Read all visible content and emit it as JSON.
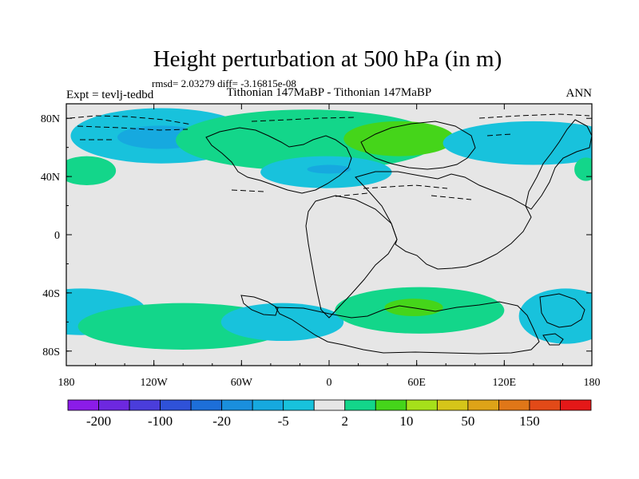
{
  "chart_data": {
    "type": "heatmap",
    "title": "Height perturbation at 500 hPa (in m)",
    "stats_text": "rmsd= 2.03279 diff= -3.16815e-08",
    "left_label": "Expt = tevlj-tedbd",
    "center_label": "Tithonian 147MaBP - Tithonian 147MaBP",
    "right_label": "ANN",
    "x_ticks": [
      "180",
      "120W",
      "60W",
      "0",
      "60E",
      "120E",
      "180"
    ],
    "x_tick_values": [
      -180,
      -120,
      -60,
      0,
      60,
      120,
      180
    ],
    "y_ticks": [
      "80N",
      "40N",
      "0",
      "40S",
      "80S"
    ],
    "y_tick_values": [
      80,
      40,
      0,
      -40,
      -80
    ],
    "xlim": [
      -180,
      180
    ],
    "ylim": [
      -90,
      90
    ],
    "colorbar": {
      "colors": [
        "#8b1ce8",
        "#6d28e0",
        "#4a3ddb",
        "#2f52d8",
        "#1d6fd9",
        "#1a8fdd",
        "#16a9df",
        "#18c2dc",
        "#e6e6e6",
        "#13d68a",
        "#45d51a",
        "#a6e01a",
        "#d6c519",
        "#dea318",
        "#e07718",
        "#e24a18",
        "#e41818"
      ],
      "labels": [
        "-200",
        "-100",
        "-20",
        "-5",
        "2",
        "10",
        "50",
        "150"
      ]
    },
    "regions": [
      {
        "level": "-5 to -2",
        "color": "#18c2dc",
        "cx": -115,
        "cy": 68,
        "rx": 62,
        "ry": 19
      },
      {
        "level": "-20 to -5",
        "color": "#16a9df",
        "cx": -115,
        "cy": 67,
        "rx": 30,
        "ry": 8
      },
      {
        "level": "2 to 10",
        "color": "#13d68a",
        "cx": -15,
        "cy": 65,
        "rx": 90,
        "ry": 21
      },
      {
        "level": "10 to 50",
        "color": "#45d51a",
        "cx": 48,
        "cy": 66,
        "rx": 38,
        "ry": 12
      },
      {
        "level": "-5 to -2",
        "color": "#18c2dc",
        "cx": -2,
        "cy": 43,
        "rx": 45,
        "ry": 11
      },
      {
        "level": "-20 to -5",
        "color": "#16a9df",
        "cx": 0,
        "cy": 45,
        "rx": 15,
        "ry": 3
      },
      {
        "level": "-5 to -2",
        "color": "#18c2dc",
        "cx": 140,
        "cy": 63,
        "rx": 62,
        "ry": 15
      },
      {
        "level": "2 to 10",
        "color": "#13d68a",
        "cx": -166,
        "cy": 44,
        "rx": 20,
        "ry": 10
      },
      {
        "level": "2 to 10",
        "color": "#13d68a",
        "cx": 176,
        "cy": 45,
        "rx": 8,
        "ry": 8
      },
      {
        "level": "-5 to -2",
        "color": "#18c2dc",
        "cx": -170,
        "cy": -53,
        "rx": 45,
        "ry": 16
      },
      {
        "level": "2 to 10",
        "color": "#13d68a",
        "cx": -100,
        "cy": -63,
        "rx": 72,
        "ry": 16
      },
      {
        "level": "-5 to -2",
        "color": "#18c2dc",
        "cx": -32,
        "cy": -60,
        "rx": 42,
        "ry": 13
      },
      {
        "level": "2 to 10",
        "color": "#13d68a",
        "cx": 62,
        "cy": -52,
        "rx": 58,
        "ry": 16
      },
      {
        "level": "10 to 50",
        "color": "#45d51a",
        "cx": 58,
        "cy": -50,
        "rx": 20,
        "ry": 6
      },
      {
        "level": "-5 to -2",
        "color": "#18c2dc",
        "cx": 162,
        "cy": -56,
        "rx": 32,
        "ry": 19
      }
    ]
  }
}
